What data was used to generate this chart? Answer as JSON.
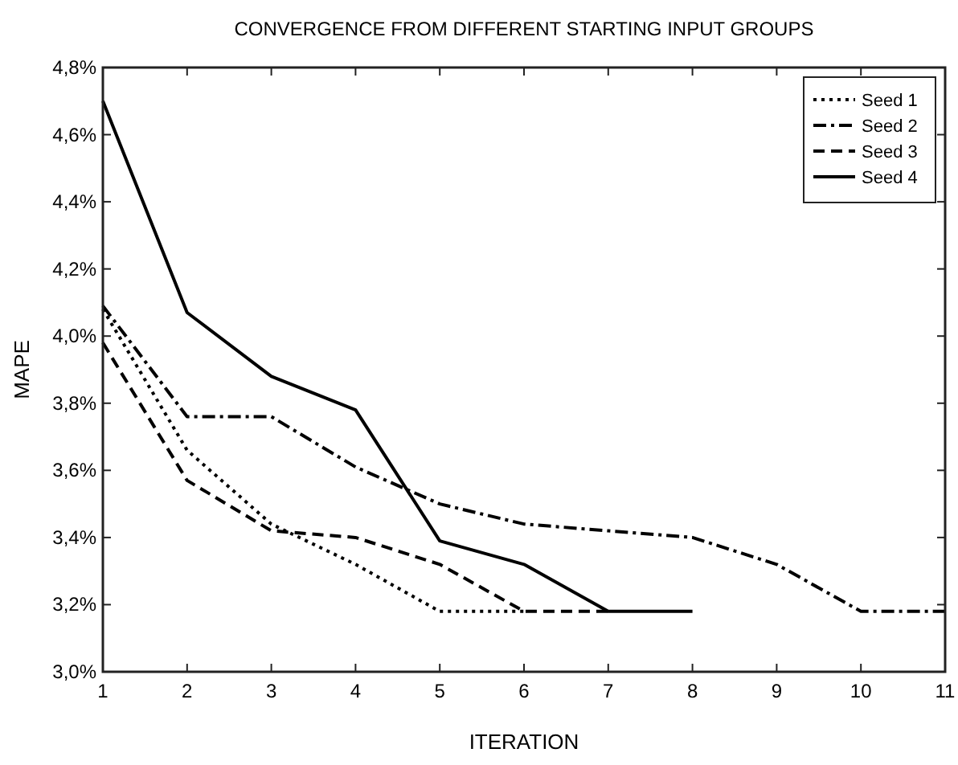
{
  "chart_data": {
    "type": "line",
    "title": "CONVERGENCE FROM DIFFERENT STARTING INPUT GROUPS",
    "xlabel": "ITERATION",
    "ylabel": "MAPE",
    "xlim": [
      1,
      11
    ],
    "xticks": [
      1,
      2,
      3,
      4,
      5,
      6,
      7,
      8,
      9,
      10,
      11
    ],
    "ylim": [
      3.0,
      4.8
    ],
    "yticks": [
      {
        "value": 3.0,
        "label": "3,0%"
      },
      {
        "value": 3.2,
        "label": "3,2%"
      },
      {
        "value": 3.4,
        "label": "3,4%"
      },
      {
        "value": 3.6,
        "label": "3,6%"
      },
      {
        "value": 3.8,
        "label": "3,8%"
      },
      {
        "value": 4.0,
        "label": "4,0%"
      },
      {
        "value": 4.2,
        "label": "4,2%"
      },
      {
        "value": 4.4,
        "label": "4,4%"
      },
      {
        "value": 4.6,
        "label": "4,6%"
      },
      {
        "value": 4.8,
        "label": "4,8%"
      }
    ],
    "legend": "top right",
    "grid": false,
    "series": [
      {
        "name": "Seed 1",
        "color": "#000000",
        "line_style": "dotted",
        "x": [
          1,
          2,
          3,
          4,
          5,
          6
        ],
        "values": [
          4.08,
          3.66,
          3.44,
          3.32,
          3.18,
          3.18
        ]
      },
      {
        "name": "Seed 2",
        "color": "#000000",
        "line_style": "dashdot",
        "x": [
          1,
          2,
          3,
          4,
          5,
          6,
          7,
          8,
          9,
          10,
          11
        ],
        "values": [
          4.09,
          3.76,
          3.76,
          3.61,
          3.5,
          3.44,
          3.42,
          3.4,
          3.32,
          3.18,
          3.18
        ]
      },
      {
        "name": "Seed 3",
        "color": "#000000",
        "line_style": "dashed",
        "x": [
          1,
          2,
          3,
          4,
          5,
          6,
          7
        ],
        "values": [
          3.98,
          3.57,
          3.42,
          3.4,
          3.32,
          3.18,
          3.18
        ]
      },
      {
        "name": "Seed 4",
        "color": "#000000",
        "line_style": "solid",
        "x": [
          1,
          2,
          3,
          4,
          5,
          6,
          7,
          8
        ],
        "values": [
          4.7,
          4.07,
          3.88,
          3.78,
          3.39,
          3.32,
          3.18,
          3.18
        ]
      }
    ]
  }
}
